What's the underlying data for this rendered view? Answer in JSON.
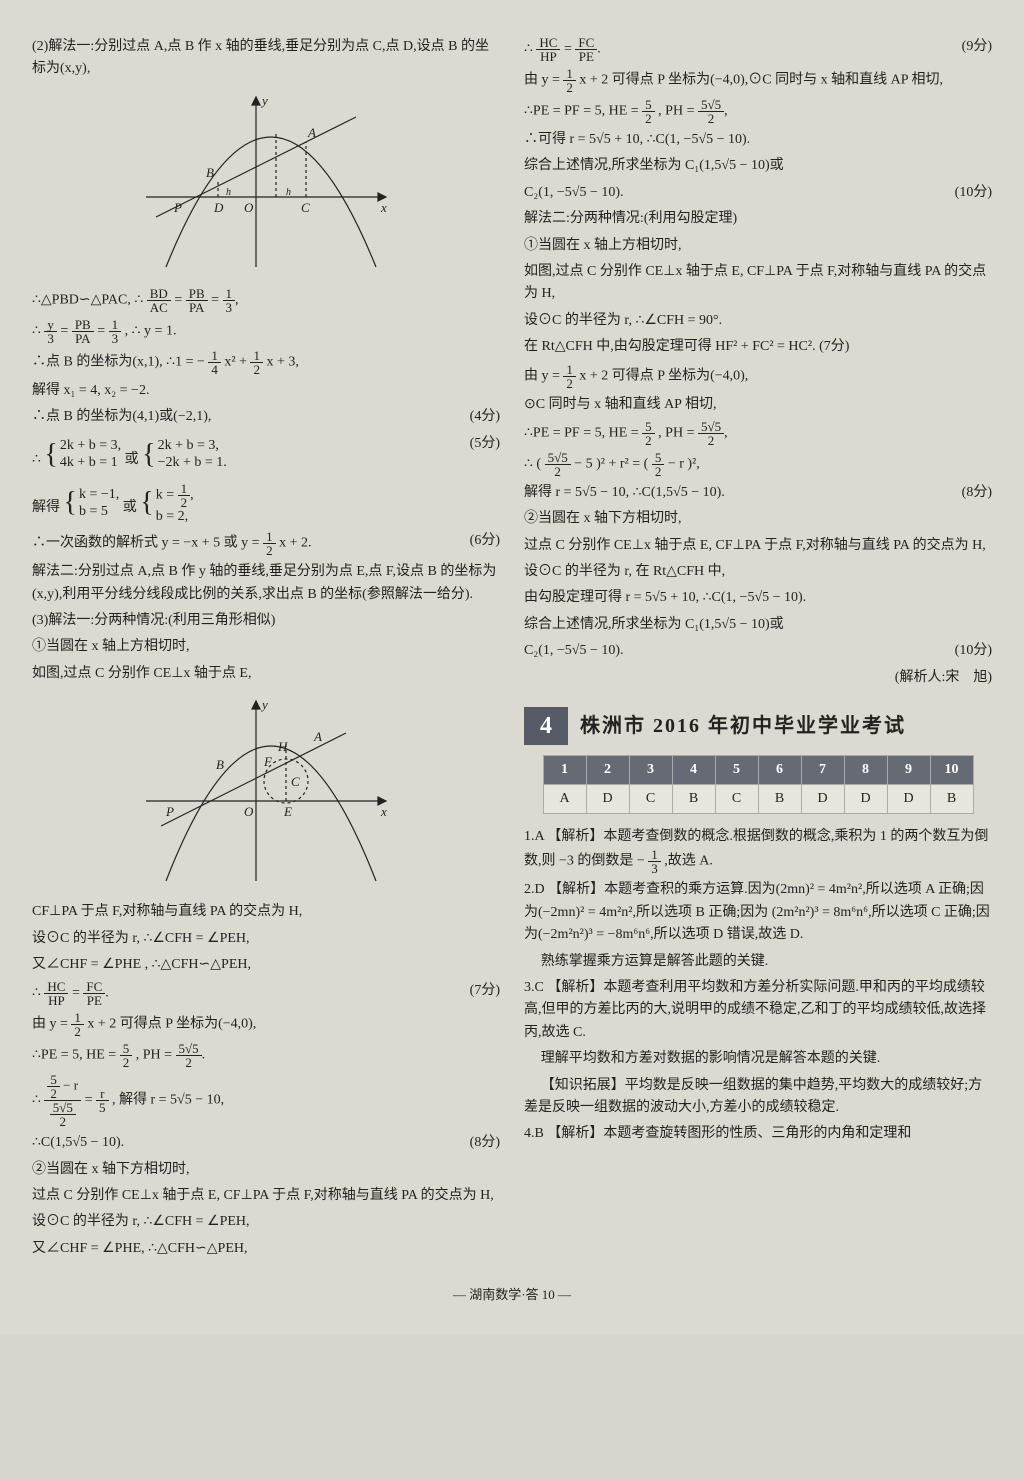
{
  "col1": {
    "p_intro2": "(2)解法一:分别过点 A,点 B 作 x 轴的垂线,垂足分别为点 C,点 D,设点 B 的坐标为(x,y),",
    "sim": "∴△PBD∽△PAC, ∴ ",
    "frac_bdac_n": "BD",
    "frac_bdac_d": "AC",
    "frac_pbpa_n": "PB",
    "frac_pbpa_d": "PA",
    "frac_13_n": "1",
    "frac_13_d": "3",
    "p_y3": "∴ ",
    "frac_y3_n": "y",
    "frac_y3_d": "3",
    "p_y1": " , ∴ y = 1.",
    "p_bx": "∴点 B 的坐标为(x,1), ∴1 = −",
    "frac_14_n": "1",
    "frac_14_d": "4",
    "p_bx2": "x² + ",
    "frac_12_n": "1",
    "frac_12_d": "2",
    "p_bx3": "x + 3,",
    "p_solve": "解得 x₁ = 4, x₂ = −2.",
    "p_b41": "∴点 B 的坐标为(4,1)或(−2,1),",
    "score4": "(4分)",
    "p_sys": "∴",
    "sys1a": "2k + b = 3,",
    "sys1b": "4k + b = 1",
    "p_or": "或",
    "sys2a": "2k + b = 3,",
    "sys2b": "−2k + b = 1.",
    "score5": "(5分)",
    "p_solve2": "解得",
    "sol1a": "k = −1,",
    "sol1b": "b = 5",
    "sol2a": "k = ",
    "sol2b": "b = 2,",
    "p_func": "∴一次函数的解析式 y = −x + 5 或 y = ",
    "p_func2": "x + 2.",
    "score6": "(6分)",
    "p_method2": "解法二:分别过点 A,点 B 作 y 轴的垂线,垂足分别为点 E,点 F,设点 B 的坐标为(x,y),利用平分线分线段成比例的关系,求出点 B 的坐标(参照解法一给分).",
    "p_3": "(3)解法一:分两种情况:(利用三角形相似)",
    "p_3a": "①当圆在 x 轴上方相切时,",
    "p_3b": "如图,过点 C 分别作 CE⊥x 轴于点 E,",
    "p_cfpa": "CF⊥PA 于点 F,对称轴与直线 PA 的交点为 H,",
    "p_setr": "设⊙C 的半径为 r, ∴∠CFH = ∠PEH,",
    "p_chf": "又∠CHF = ∠PHE , ∴△CFH∽△PEH,",
    "frac_hchp_n": "HC",
    "frac_hchp_d": "HP",
    "frac_fcpe_n": "FC",
    "frac_fcpe_d": "PE",
    "score7": "(7分)",
    "p_yline": "由 y = ",
    "p_yline2": "x + 2 可得点 P 坐标为(−4,0),",
    "p_pe5": "∴PE = 5, HE = ",
    "frac_52_n": "5",
    "frac_52_d": "2",
    "p_ph": ", PH = ",
    "frac_552_n": "5√5",
    "frac_552_d": "2",
    "p_frac_r": "∴ ",
    "p_rsolve": ", 解得 r = 5√5 − 10,",
    "p_c1": "∴C(1,5√5 − 10).",
    "score8": "(8分)",
    "p_below": "②当圆在 x 轴下方相切时,",
    "p_below2": "过点 C 分别作 CE⊥x 轴于点 E, CF⊥PA 于点 F,对称轴与直线 PA 的交点为 H,",
    "p_below3": "设⊙C 的半径为 r, ∴∠CFH = ∠PEH,",
    "p_below4": "又∠CHF = ∠PHE, ∴△CFH∽△PEH,"
  },
  "col2": {
    "p_r1": "∴ ",
    "score9": "(9分)",
    "p_r2": "由 y = ",
    "p_r3": "x + 2 可得点 P 坐标为(−4,0),⊙C 同时与 x 轴和直线 AP 相切,",
    "p_r4": "∴PE = PF = 5, HE = ",
    "p_r5": "∴可得 r = 5√5 + 10, ∴C(1, −5√5 − 10).",
    "p_r6": "综合上述情况,所求坐标为 C₁(1,5√5 − 10)或",
    "p_r7": "C₂(1, −5√5 − 10).",
    "score10": "(10分)",
    "p_m2": "解法二:分两种情况:(利用勾股定理)",
    "p_m2a": "①当圆在 x 轴上方相切时,",
    "p_m2b": "如图,过点 C 分别作 CE⊥x 轴于点 E, CF⊥PA 于点 F,对称轴与直线 PA 的交点为 H,",
    "p_m2c": "设⊙C 的半径为 r, ∴∠CFH = 90°.",
    "p_m2d": "在 Rt△CFH 中,由勾股定理可得 HF² + FC² = HC². (7分)",
    "p_m2e": "由 y = ",
    "p_m2f": "x + 2 可得点 P 坐标为(−4,0),",
    "p_m2g": "⊙C 同时与 x 轴和直线 AP 相切,",
    "p_m2h": "∴PE = PF = 5, HE = ",
    "p_m2i": "∴",
    "p_m2j": "解得 r = 5√5 − 10, ∴C(1,5√5 − 10).",
    "score8b": "(8分)",
    "p_m2k": "②当圆在 x 轴下方相切时,",
    "p_m2l": "过点 C 分别作 CE⊥x 轴于点 E, CF⊥PA 于点 F,对称轴与直线 PA 的交点为 H,",
    "p_m2m": "设⊙C 的半径为 r, 在 Rt△CFH 中,",
    "p_m2n": "由勾股定理可得 r = 5√5 + 10, ∴C(1, −5√5 − 10).",
    "p_m2o": "综合上述情况,所求坐标为 C₁(1,5√5 − 10)或",
    "p_m2p": "C₂(1, −5√5 − 10).",
    "score10b": "(10分)",
    "credit": "(解析人:宋　旭)",
    "section_num": "4",
    "section_title": "株洲市 2016 年初中毕业学业考试",
    "ans_head": [
      "1",
      "2",
      "3",
      "4",
      "5",
      "6",
      "7",
      "8",
      "9",
      "10"
    ],
    "ans_row": [
      "A",
      "D",
      "C",
      "B",
      "C",
      "B",
      "D",
      "D",
      "D",
      "B"
    ],
    "a1": "1.A 【解析】本题考查倒数的概念.根据倒数的概念,乘积为 1 的两个数互为倒数,则 −3 的倒数是 −",
    "a1b": ",故选 A.",
    "a2": "2.D 【解析】本题考查积的乘方运算.因为(2mn)² = 4m²n²,所以选项 A 正确;因为(−2mn)² = 4m²n²,所以选项 B 正确;因为 (2m²n²)³ = 8m⁶n⁶,所以选项 C 正确;因为(−2m²n²)³ = −8m⁶n⁶,所以选项 D 错误,故选 D.",
    "a2b": "熟练掌握乘方运算是解答此题的关键.",
    "a3": "3.C 【解析】本题考查利用平均数和方差分析实际问题.甲和丙的平均成绩较高,但甲的方差比丙的大,说明甲的成绩不稳定,乙和丁的平均成绩较低,故选择丙,故选 C.",
    "a3b": "理解平均数和方差对数据的影响情况是解答本题的关键.",
    "a3c": "【知识拓展】平均数是反映一组数据的集中趋势,平均数大的成绩较好;方差是反映一组数据的波动大小,方差小的成绩较稳定.",
    "a4": "4.B 【解析】本题考查旋转图形的性质、三角形的内角和定理和"
  },
  "footer": "— 湖南数学·答 10 —",
  "diagram1": {
    "bg": "#dcd9d0",
    "stroke": "#222",
    "labels": {
      "P": "P",
      "D": "D",
      "O": "O",
      "C": "C",
      "A": "A",
      "B": "B",
      "x": "x",
      "y": "y",
      "h1": "h",
      "h2": "h"
    }
  },
  "diagram2": {
    "bg": "#dcd9d0",
    "stroke": "#222",
    "labels": {
      "P": "P",
      "O": "O",
      "E": "E",
      "C": "C",
      "A": "A",
      "B": "B",
      "H": "H",
      "F": "F",
      "x": "x",
      "y": "y"
    }
  }
}
